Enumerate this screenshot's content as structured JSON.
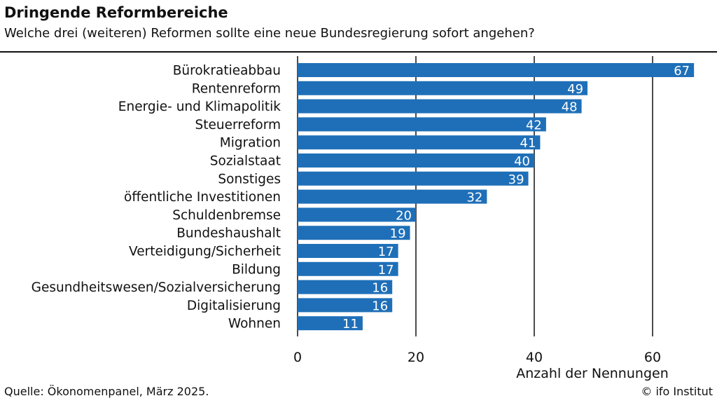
{
  "header": {
    "title": "Dringende Reformbereiche",
    "subtitle": "Welche drei (weiteren) Reformen sollte eine neue Bundesregierung sofort angehen?"
  },
  "footer": {
    "source": "Quelle: Ökonomenpanel, März 2025.",
    "credit": "© ifo Institut"
  },
  "colors": {
    "bar": "#1f6fb8",
    "bar_label": "#ffffff",
    "grid": "#111111"
  },
  "chart_data": {
    "type": "bar",
    "orientation": "horizontal",
    "title": "Dringende Reformbereiche",
    "subtitle": "Welche drei (weiteren) Reformen sollte eine neue Bundesregierung sofort angehen?",
    "xlabel": "Anzahl der Nennungen",
    "ylabel": "",
    "xlim": [
      0,
      70
    ],
    "xticks": [
      0,
      20,
      40,
      60
    ],
    "grid": true,
    "categories": [
      "Bürokratieabbau",
      "Rentenreform",
      "Energie- und Klimapolitik",
      "Steuerreform",
      "Migration",
      "Sozialstaat",
      "Sonstiges",
      "öffentliche Investitionen",
      "Schuldenbremse",
      "Bundeshaushalt",
      "Verteidigung/Sicherheit",
      "Bildung",
      "Gesundheitswesen/Sozialversicherung",
      "Digitalisierung",
      "Wohnen"
    ],
    "values": [
      67,
      49,
      48,
      42,
      41,
      40,
      39,
      32,
      20,
      19,
      17,
      17,
      16,
      16,
      11
    ]
  }
}
